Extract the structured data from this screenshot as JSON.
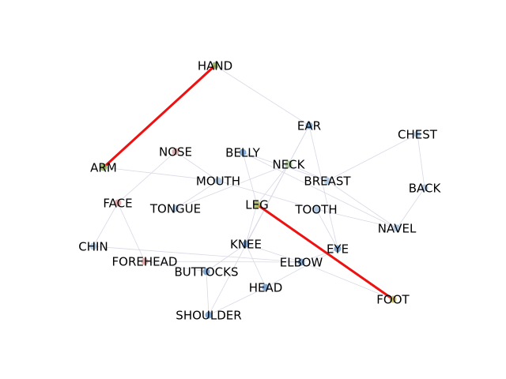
{
  "nodes": [
    {
      "id": "HAND",
      "color": "#8db05a"
    },
    {
      "id": "ARM",
      "color": "#8db05a"
    },
    {
      "id": "NOSE",
      "color": "#d6a0a0"
    },
    {
      "id": "BELLY",
      "color": "#6f9ac8"
    },
    {
      "id": "EAR",
      "color": "#6f9ac8"
    },
    {
      "id": "CHEST",
      "color": "#a8c4e0"
    },
    {
      "id": "NECK",
      "color": "#9fc08a"
    },
    {
      "id": "MOUTH",
      "color": "#a8c4e0"
    },
    {
      "id": "BREAST",
      "color": "#a8c4e0"
    },
    {
      "id": "BACK",
      "color": "#a8c4e0"
    },
    {
      "id": "FACE",
      "color": "#e0a0a0"
    },
    {
      "id": "TONGUE",
      "color": "#a8c4e0"
    },
    {
      "id": "LEG",
      "color": "#a4b85a"
    },
    {
      "id": "TOOTH",
      "color": "#a8c4e0"
    },
    {
      "id": "NAVEL",
      "color": "#a8c4e0"
    },
    {
      "id": "CHIN",
      "color": "#a8c4e0"
    },
    {
      "id": "KNEE",
      "color": "#6f9ac8"
    },
    {
      "id": "EYE",
      "color": "#6f9ac8"
    },
    {
      "id": "FOREHEAD",
      "color": "#e0a0a0"
    },
    {
      "id": "ELBOW",
      "color": "#6f9ac8"
    },
    {
      "id": "BUTTOCKS",
      "color": "#6f9ac8"
    },
    {
      "id": "HEAD",
      "color": "#6f9ac8"
    },
    {
      "id": "FOOT",
      "color": "#c8c060"
    },
    {
      "id": "SHOULDER",
      "color": "#6f9ac8"
    }
  ],
  "highlight_edges": [
    {
      "source": "HAND",
      "target": "ARM",
      "color": "#ee1111"
    },
    {
      "source": "LEG",
      "target": "FOOT",
      "color": "#ee1111"
    }
  ],
  "faint_edges": [
    [
      "NOSE",
      "FACE"
    ],
    [
      "NOSE",
      "MOUTH"
    ],
    [
      "FACE",
      "FOREHEAD"
    ],
    [
      "FACE",
      "CHIN"
    ],
    [
      "MOUTH",
      "TONGUE"
    ],
    [
      "MOUTH",
      "TOOTH"
    ],
    [
      "BELLY",
      "NAVEL"
    ],
    [
      "BELLY",
      "BREAST"
    ],
    [
      "EAR",
      "NECK"
    ],
    [
      "EAR",
      "KNEE"
    ],
    [
      "EAR",
      "EYE"
    ],
    [
      "NECK",
      "BREAST"
    ],
    [
      "NECK",
      "SHOULDER"
    ],
    [
      "CHEST",
      "BACK"
    ],
    [
      "CHEST",
      "BREAST"
    ],
    [
      "BACK",
      "NAVEL"
    ],
    [
      "BREAST",
      "NAVEL"
    ],
    [
      "TOOTH",
      "EYE"
    ],
    [
      "KNEE",
      "ELBOW"
    ],
    [
      "KNEE",
      "BUTTOCKS"
    ],
    [
      "KNEE",
      "HEAD"
    ],
    [
      "ELBOW",
      "EYE"
    ],
    [
      "ELBOW",
      "FOOT"
    ],
    [
      "BUTTOCKS",
      "SHOULDER"
    ],
    [
      "HEAD",
      "SHOULDER"
    ],
    [
      "HEAD",
      "EYE"
    ],
    [
      "CHIN",
      "ELBOW"
    ],
    [
      "FOREHEAD",
      "BUTTOCKS"
    ],
    [
      "TONGUE",
      "NECK"
    ],
    [
      "LEG",
      "KNEE"
    ],
    [
      "LEG",
      "NECK"
    ],
    [
      "HAND",
      "EAR"
    ],
    [
      "ARM",
      "MOUTH"
    ],
    [
      "BELLY",
      "LEG"
    ],
    [
      "FOREHEAD",
      "ELBOW"
    ],
    [
      "TOOTH",
      "NAVEL"
    ]
  ],
  "faint_edge_color": "#d8d8e6"
}
